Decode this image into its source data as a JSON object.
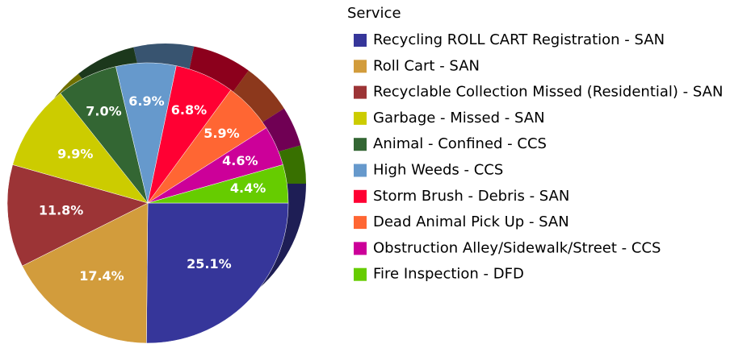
{
  "chart_data": {
    "type": "pie",
    "legend_title": "Service",
    "categories": [
      "Recycling ROLL CART Registration - SAN",
      "Roll Cart - SAN",
      "Recyclable Collection Missed (Residential) - SAN",
      "Garbage - Missed - SAN",
      "Animal - Confined - CCS",
      "High Weeds - CCS",
      "Storm Brush - Debris - SAN",
      "Dead Animal Pick Up - SAN",
      "Obstruction Alley/Sidewalk/Street - CCS",
      "Fire Inspection - DFD"
    ],
    "values": [
      25.1,
      17.4,
      11.8,
      9.9,
      7.0,
      6.9,
      6.8,
      5.9,
      4.6,
      4.4
    ],
    "value_labels": [
      "25.1%",
      "17.4%",
      "11.8%",
      "9.9%",
      "7.0%",
      "6.9%",
      "6.8%",
      "5.9%",
      "4.6%",
      "4.4%"
    ],
    "colors": [
      "#36369a",
      "#d29c3c",
      "#9c3436",
      "#cccc00",
      "#336633",
      "#6699cc",
      "#ff0033",
      "#ff6633",
      "#cc0099",
      "#66cc00"
    ],
    "legend": "right"
  }
}
